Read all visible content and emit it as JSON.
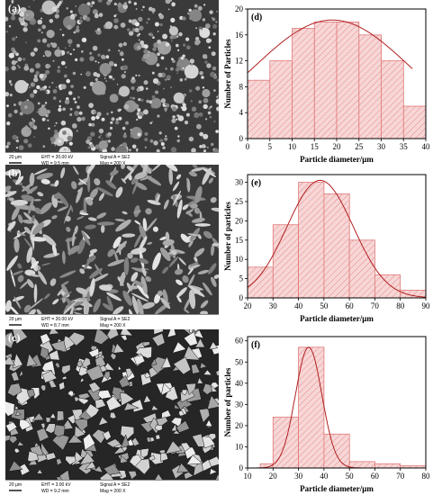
{
  "sem_panels": [
    {
      "label": "(a)",
      "scale": "20 μm",
      "info": [
        "EHT = 20.00 kV",
        "WD = 9.5 mm",
        "Signal A = SE2",
        "Mag = 200 X"
      ],
      "texture": "spheres"
    },
    {
      "label": "(b)",
      "scale": "20 μm",
      "info": [
        "EHT = 20.00 kV",
        "WD = 8.7 mm",
        "Signal A = SE2",
        "Mag = 200 X"
      ],
      "texture": "flakes"
    },
    {
      "label": "(c)",
      "scale": "20 μm",
      "info": [
        "EHT = 3.00 kV",
        "WD = 9.2 mm",
        "Signal A = SE2",
        "Mag = 200 X"
      ],
      "texture": "angular"
    }
  ],
  "colors": {
    "bar_fill": "#f7d6d6",
    "hatch": "#e07878",
    "curve": "#b02020"
  },
  "chart_data": [
    {
      "type": "bar",
      "panel": "(d)",
      "xlabel": "Particle diameter/μm",
      "ylabel": "Number of Particles",
      "xlim": [
        0,
        40
      ],
      "ylim": [
        0,
        20
      ],
      "xticks": [
        0,
        5,
        10,
        15,
        20,
        25,
        30,
        35,
        40
      ],
      "yticks": [
        0,
        4,
        8,
        12,
        16,
        20
      ],
      "bin_edges": [
        0,
        5,
        10,
        15,
        20,
        25,
        30,
        35,
        40
      ],
      "values": [
        9,
        12,
        17,
        18,
        18,
        16,
        12,
        5
      ],
      "fit": {
        "type": "gaussian",
        "peak": 18.3,
        "center": 19,
        "sigma": 17.5,
        "range": [
          0,
          37
        ]
      }
    },
    {
      "type": "bar",
      "panel": "(e)",
      "xlabel": "Particle diameter/μm",
      "ylabel": "Number of particles",
      "xlim": [
        20,
        90
      ],
      "ylim": [
        0,
        32
      ],
      "xticks": [
        20,
        30,
        40,
        50,
        60,
        70,
        80,
        90
      ],
      "yticks": [
        0,
        5,
        10,
        15,
        20,
        25,
        30
      ],
      "bin_edges": [
        20,
        30,
        40,
        50,
        60,
        70,
        80,
        90
      ],
      "values": [
        8,
        19,
        30,
        27,
        15,
        6,
        2
      ],
      "fit": {
        "type": "gaussian",
        "peak": 30.5,
        "center": 48.5,
        "sigma": 13,
        "range": [
          20,
          90
        ]
      }
    },
    {
      "type": "bar",
      "panel": "(f)",
      "xlabel": "Particle diameter/μm",
      "ylabel": "Number of particles",
      "xlim": [
        10,
        80
      ],
      "ylim": [
        0,
        62
      ],
      "xticks": [
        10,
        20,
        30,
        40,
        50,
        60,
        70,
        80
      ],
      "yticks": [
        0,
        10,
        20,
        30,
        40,
        50,
        60
      ],
      "bin_edges": [
        10,
        15,
        20,
        25,
        30,
        35,
        40,
        45,
        50,
        55,
        60,
        65,
        70,
        75,
        80
      ],
      "values": [
        0,
        2,
        24,
        0,
        57,
        0,
        16,
        0,
        3,
        0,
        2,
        0,
        1,
        0
      ],
      "display_bins": [
        [
          15,
          20,
          2
        ],
        [
          20,
          30,
          24
        ],
        [
          30,
          40,
          57
        ],
        [
          40,
          50,
          16
        ],
        [
          50,
          60,
          3
        ],
        [
          60,
          70,
          2
        ],
        [
          70,
          80,
          1
        ]
      ],
      "fit": {
        "type": "gaussian",
        "peak": 57,
        "center": 34,
        "sigma": 5.2,
        "range": [
          10,
          80
        ]
      }
    }
  ]
}
